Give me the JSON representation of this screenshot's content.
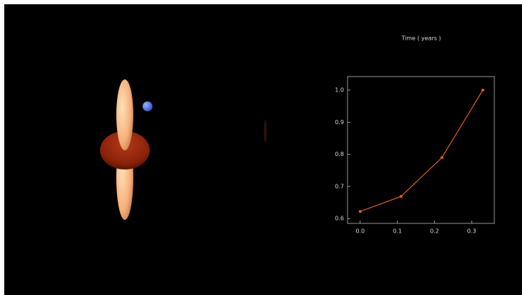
{
  "chart_data": {
    "type": "line",
    "title": "Time ( years )",
    "x": [
      0.0,
      0.11,
      0.22,
      0.33
    ],
    "series": [
      {
        "color": "#e0601a",
        "values": [
          0.622,
          0.669,
          0.79,
          1.0
        ]
      }
    ],
    "xlim": [
      -0.034,
      0.361
    ],
    "ylim": [
      0.585,
      1.042
    ],
    "xticks": [
      {
        "value": 0,
        "label": "0.0"
      },
      0.1,
      0.2,
      0.3
    ],
    "yticks": [
      {
        "value": 0.6,
        "label": "0.6"
      },
      0.7,
      0.8,
      0.9,
      {
        "value": 1,
        "label": "1.0"
      }
    ]
  }
}
